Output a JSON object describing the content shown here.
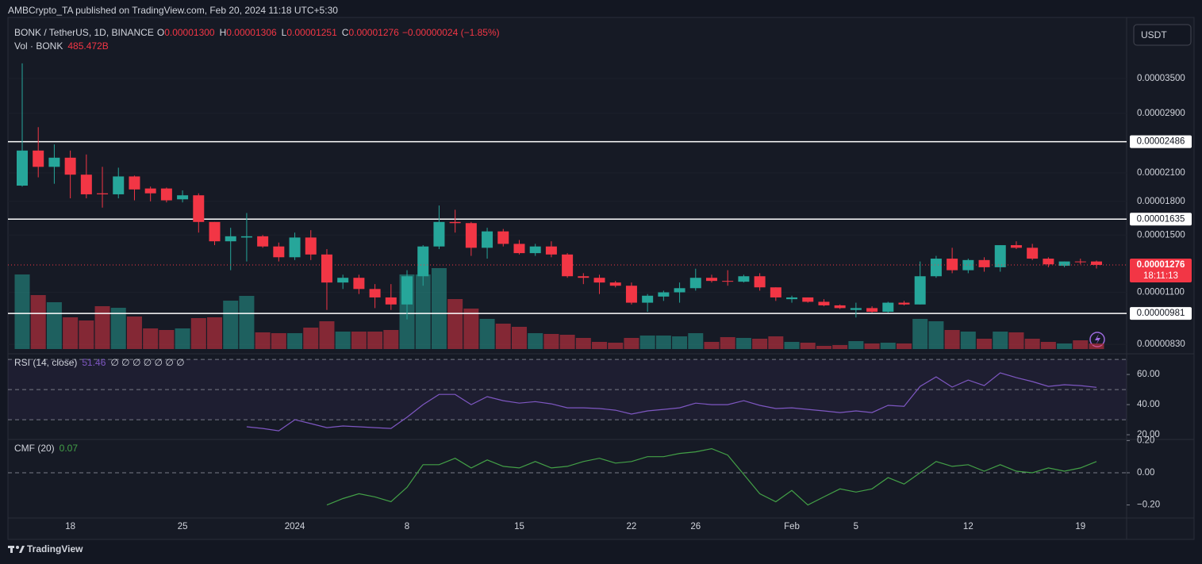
{
  "header": {
    "byline": "AMBCrypto_TA published on TradingView.com, Feb 20, 2024 11:18 UTC+5:30",
    "currency_button": "USDT",
    "footer": "TradingView"
  },
  "chart_data": [
    {
      "type": "candlestick",
      "symbol": "BONK / TetherUS, 1D, BINANCE",
      "legend": [
        {
          "label": "O",
          "value": "0.00001300"
        },
        {
          "label": "H",
          "value": "0.00001306"
        },
        {
          "label": "L",
          "value": "0.00001251"
        },
        {
          "label": "C",
          "value": "0.00001276"
        }
      ],
      "change": "−0.00000024 (−1.85%)",
      "up_color": "#26a69a",
      "down_color": "#f23645",
      "categories": [
        null,
        null,
        null,
        "18",
        null,
        null,
        null,
        null,
        null,
        null,
        "25",
        null,
        null,
        null,
        null,
        null,
        null,
        "2024",
        null,
        null,
        null,
        null,
        null,
        null,
        "8",
        null,
        null,
        null,
        null,
        null,
        null,
        "15",
        null,
        null,
        null,
        null,
        null,
        null,
        "22",
        null,
        null,
        null,
        "26",
        null,
        null,
        null,
        null,
        null,
        "Feb",
        null,
        null,
        null,
        "5",
        null,
        null,
        null,
        null,
        null,
        null,
        "12",
        null,
        null,
        null,
        null,
        null,
        null,
        "19",
        null
      ],
      "open": [
        1.96e-05,
        2.37e-05,
        2.17e-05,
        2.28e-05,
        2.08e-05,
        1.88e-05,
        1.87e-05,
        2.06e-05,
        1.93e-05,
        1.93e-05,
        1.82e-05,
        1.86e-05,
        1.61e-05,
        1.45e-05,
        1.48e-05,
        1.49e-05,
        1.41e-05,
        1.33e-05,
        1.48e-05,
        1.35e-05,
        1.16e-05,
        1.19e-05,
        1.12e-05,
        1.07e-05,
        1.03e-05,
        1.2e-05,
        1.41e-05,
        1.61e-05,
        1.6e-05,
        1.4e-05,
        1.53e-05,
        1.43e-05,
        1.36e-05,
        1.41e-05,
        1.35e-05,
        1.2e-05,
        1.19e-05,
        1.16e-05,
        1.14e-05,
        1.04e-05,
        1.075e-05,
        1.1e-05,
        1.125e-05,
        1.19e-05,
        1.17e-05,
        1.165e-05,
        1.2e-05,
        1.13e-05,
        1.06e-05,
        1.07e-05,
        1.045e-05,
        1.025e-05,
        1e-05,
        1.01e-05,
        9.9e-06,
        1.04e-05,
        1.03e-05,
        1.2e-05,
        1.32e-05,
        1.24e-05,
        1.31e-05,
        1.26e-05,
        1.42e-05,
        1.4e-05,
        1.32e-05,
        1.27e-05,
        1.3e-05,
        1.3e-05
      ],
      "high": [
        3.8e-05,
        2.69e-05,
        2.45e-05,
        2.37e-05,
        2.32e-05,
        2.17e-05,
        2.16e-05,
        2.07e-05,
        1.95e-05,
        1.94e-05,
        1.91e-05,
        1.88e-05,
        1.61e-05,
        1.56e-05,
        1.69e-05,
        1.5e-05,
        1.44e-05,
        1.52e-05,
        1.54e-05,
        1.39e-05,
        1.21e-05,
        1.21e-05,
        1.15e-05,
        1.15e-05,
        1.24e-05,
        1.42e-05,
        1.76e-05,
        1.72e-05,
        1.61e-05,
        1.56e-05,
        1.55e-05,
        1.46e-05,
        1.43e-05,
        1.45e-05,
        1.36e-05,
        1.22e-05,
        1.21e-05,
        1.17e-05,
        1.16e-05,
        1.09e-05,
        1.11e-05,
        1.16e-05,
        1.25e-05,
        1.21e-05,
        1.24e-05,
        1.21e-05,
        1.22e-05,
        1.13e-05,
        1.08e-05,
        1.07e-05,
        1.06e-05,
        1.03e-05,
        1.04e-05,
        1.02e-05,
        1.045e-05,
        1.05e-05,
        1.3e-05,
        1.34e-05,
        1.4e-05,
        1.32e-05,
        1.33e-05,
        1.42e-05,
        1.45e-05,
        1.43e-05,
        1.33e-05,
        1.3e-05,
        1.32e-05,
        1.306e-05
      ],
      "low": [
        1.95e-05,
        2.05e-05,
        1.98e-05,
        1.83e-05,
        1.83e-05,
        1.74e-05,
        1.83e-05,
        1.81e-05,
        1.8e-05,
        1.79e-05,
        1.79e-05,
        1.52e-05,
        1.42e-05,
        1.24e-05,
        1.3e-05,
        1.4e-05,
        1.3e-05,
        1.31e-05,
        1.31e-05,
        1e-05,
        1.12e-05,
        1.09e-05,
        1.01e-05,
        1e-05,
        9.5e-06,
        1.14e-05,
        1.39e-05,
        1.52e-05,
        1.34e-05,
        1.32e-05,
        1.41e-05,
        1.35e-05,
        1.34e-05,
        1.33e-05,
        1.19e-05,
        1.15e-05,
        1.09e-05,
        1.13e-05,
        1.03e-05,
        9.9e-06,
        1.05e-05,
        1.04e-05,
        1.11e-05,
        1.16e-05,
        1.14e-05,
        1.16e-05,
        1.11e-05,
        1.05e-05,
        1.04e-05,
        1.04e-05,
        1.02e-05,
        1.005e-05,
        9.6e-06,
        9.85e-06,
        9.85e-06,
        1.025e-05,
        1.03e-05,
        1.19e-05,
        1.22e-05,
        1.22e-05,
        1.23e-05,
        1.23e-05,
        1.39e-05,
        1.31e-05,
        1.26e-05,
        1.26e-05,
        1.28e-05,
        1.251e-05
      ],
      "close": [
        2.37e-05,
        2.17e-05,
        2.28e-05,
        2.08e-05,
        1.87e-05,
        1.87e-05,
        2.06e-05,
        1.92e-05,
        1.88e-05,
        1.81e-05,
        1.86e-05,
        1.61e-05,
        1.45e-05,
        1.49e-05,
        1.49e-05,
        1.41e-05,
        1.33e-05,
        1.48e-05,
        1.35e-05,
        1.16e-05,
        1.19e-05,
        1.12e-05,
        1.07e-05,
        1.03e-05,
        1.2e-05,
        1.41e-05,
        1.61e-05,
        1.6e-05,
        1.4e-05,
        1.53e-05,
        1.43e-05,
        1.36e-05,
        1.41e-05,
        1.35e-05,
        1.2e-05,
        1.19e-05,
        1.16e-05,
        1.14e-05,
        1.04e-05,
        1.08e-05,
        1.1e-05,
        1.125e-05,
        1.19e-05,
        1.17e-05,
        1.165e-05,
        1.2e-05,
        1.13e-05,
        1.07e-05,
        1.07e-05,
        1.045e-05,
        1.025e-05,
        1.01e-05,
        1.01e-05,
        9.9e-06,
        1.04e-05,
        1.03e-05,
        1.2e-05,
        1.32e-05,
        1.24e-05,
        1.31e-05,
        1.26e-05,
        1.42e-05,
        1.4e-05,
        1.32e-05,
        1.28e-05,
        1.3e-05,
        1.295e-05,
        1.276e-05
      ],
      "log_scale": true,
      "ylim": [
        7.92e-06,
        4.872e-05
      ],
      "yticks": [
        {
          "value": 3.5e-05,
          "label": "0.00003500"
        },
        {
          "value": 2.9e-05,
          "label": "0.00002900"
        },
        {
          "value": 2.1e-05,
          "label": "0.00002100"
        },
        {
          "value": 1.8e-05,
          "label": "0.00001800"
        },
        {
          "value": 1.5e-05,
          "label": "0.00001500"
        },
        {
          "value": 1.1e-05,
          "label": "0.00001100"
        },
        {
          "value": 8.3e-06,
          "label": "0.00000830"
        }
      ],
      "levels": [
        {
          "value": 2.486e-05,
          "label": "0.00002486"
        },
        {
          "value": 1.635e-05,
          "label": "0.00001635"
        },
        {
          "value": 9.81e-06,
          "label": "0.00000981"
        }
      ],
      "last_price": {
        "label": "0.00001276",
        "countdown": "18:11:13"
      },
      "volume": {
        "name": "Vol · BONK",
        "legend_value": "485.472B",
        "values": [
          6580,
          4760,
          4130,
          2800,
          2520,
          3780,
          3640,
          2870,
          1820,
          1680,
          1820,
          2730,
          2800,
          4270,
          4690,
          1470,
          1400,
          1400,
          1890,
          2450,
          1540,
          1540,
          1540,
          1680,
          6580,
          6580,
          7140,
          4410,
          3570,
          2660,
          2240,
          1960,
          1400,
          1330,
          1260,
          980,
          630,
          560,
          980,
          1190,
          1190,
          1120,
          1400,
          630,
          1050,
          980,
          910,
          1120,
          630,
          560,
          280,
          350,
          700,
          490,
          560,
          490,
          2660,
          2450,
          1680,
          1540,
          910,
          1540,
          1470,
          910,
          630,
          490,
          770,
          485.472
        ]
      }
    },
    {
      "type": "line",
      "title": "RSI (14, close)",
      "legend_value": "51.46",
      "legend_extra": "∅ ∅ ∅ ∅ ∅ ∅ ∅",
      "color": "#7e57c2",
      "values": [
        null,
        null,
        null,
        null,
        null,
        null,
        null,
        null,
        null,
        null,
        null,
        null,
        null,
        null,
        25.3,
        24.2,
        22.6,
        30,
        27.4,
        24.7,
        25.8,
        25.3,
        24.7,
        24.2,
        31.6,
        40,
        46.8,
        46.8,
        40,
        45.3,
        42.6,
        41,
        42,
        40.5,
        37.9,
        37.9,
        37.4,
        36.3,
        33.7,
        35.8,
        36.8,
        37.9,
        41,
        40,
        40,
        42.6,
        39.5,
        37.4,
        37.9,
        36.8,
        35.8,
        34.7,
        35.8,
        34.7,
        39.5,
        38.9,
        52.1,
        58.4,
        51.6,
        56.3,
        52.6,
        61.1,
        57.9,
        55.3,
        52.1,
        53.2,
        52.6,
        51.46
      ],
      "ylim": [
        17.4,
        73.2
      ],
      "yticks": [
        {
          "value": 60,
          "label": "60.00"
        },
        {
          "value": 40,
          "label": "40.00"
        },
        {
          "value": 20,
          "label": "20.00"
        }
      ],
      "levels": [
        70,
        50,
        30
      ]
    },
    {
      "type": "line",
      "title": "CMF (20)",
      "legend_value": "0.07",
      "color": "#43a047",
      "values": [
        null,
        null,
        null,
        null,
        null,
        null,
        null,
        null,
        null,
        null,
        null,
        null,
        null,
        null,
        null,
        null,
        null,
        null,
        null,
        -0.2,
        -0.16,
        -0.13,
        -0.15,
        -0.18,
        -0.09,
        0.05,
        0.05,
        0.09,
        0.03,
        0.08,
        0.04,
        0.03,
        0.07,
        0.03,
        0.04,
        0.07,
        0.09,
        0.06,
        0.07,
        0.1,
        0.1,
        0.12,
        0.13,
        0.15,
        0.11,
        -0.01,
        -0.13,
        -0.18,
        -0.11,
        -0.2,
        -0.15,
        -0.1,
        -0.12,
        -0.1,
        -0.03,
        -0.07,
        0,
        0.07,
        0.04,
        0.05,
        0.01,
        0.05,
        0.01,
        0,
        0.03,
        0.01,
        0.03,
        0.07
      ],
      "ylim": [
        -0.276,
        0.202
      ],
      "yticks": [
        {
          "value": 0.2,
          "label": "0.20"
        },
        {
          "value": 0,
          "label": "0.00"
        },
        {
          "value": -0.2,
          "label": "−0.20"
        }
      ],
      "levels": [
        0
      ]
    }
  ]
}
